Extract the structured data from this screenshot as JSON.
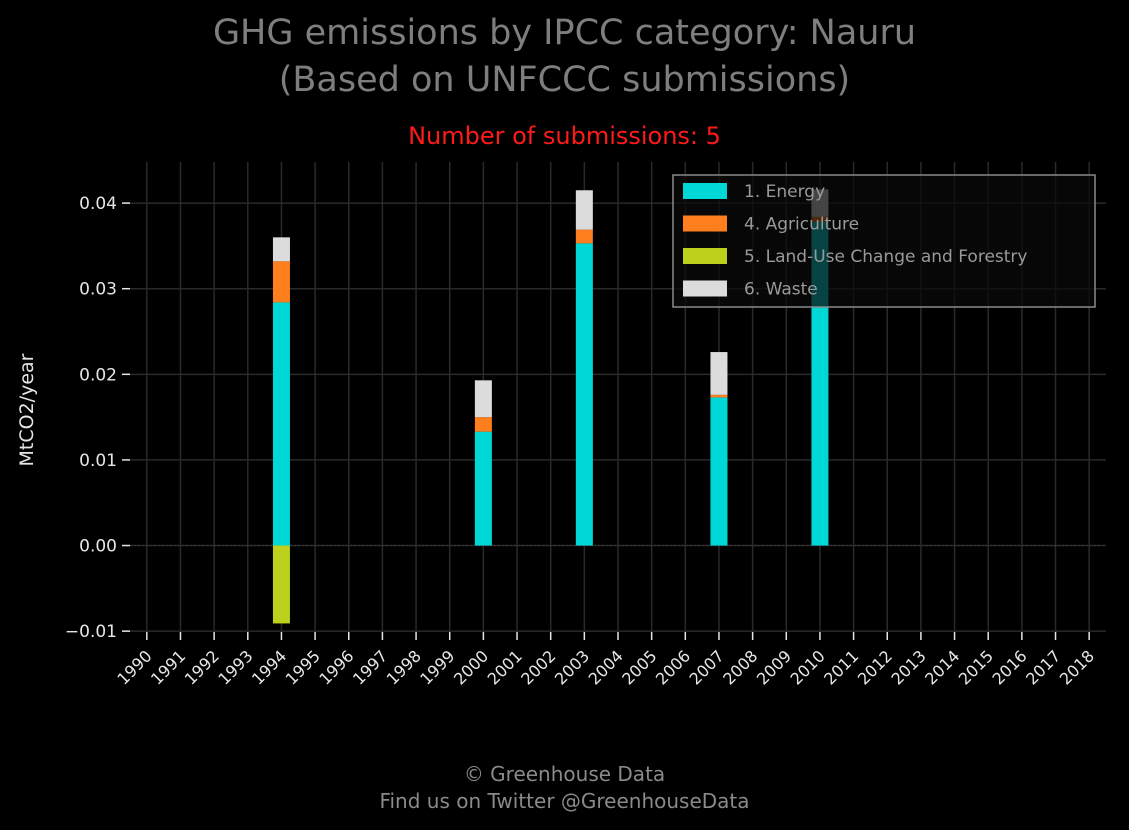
{
  "title_line1": "GHG emissions by IPCC category: Nauru",
  "title_line2": "(Based on UNFCCC submissions)",
  "subtitle": "Number of submissions: 5",
  "footer_line1": "© Greenhouse Data",
  "footer_line2": "Find us on Twitter @GreenhouseData",
  "chart_data": {
    "type": "bar",
    "stacked": true,
    "ylabel": "MtCO2/year",
    "xlabel": "",
    "ylim": [
      -0.0101,
      0.0448
    ],
    "yticks": [
      -0.01,
      0.0,
      0.01,
      0.02,
      0.03,
      0.04
    ],
    "ytick_labels": [
      "−0.01",
      "0.00",
      "0.01",
      "0.02",
      "0.03",
      "0.04"
    ],
    "categories": [
      "1990",
      "1991",
      "1992",
      "1993",
      "1994",
      "1995",
      "1996",
      "1997",
      "1998",
      "1999",
      "2000",
      "2001",
      "2002",
      "2003",
      "2004",
      "2005",
      "2006",
      "2007",
      "2008",
      "2009",
      "2010",
      "2011",
      "2012",
      "2013",
      "2014",
      "2015",
      "2016",
      "2017",
      "2018"
    ],
    "series": [
      {
        "name": "1. Energy",
        "color": "#00d8d8",
        "values": [
          null,
          null,
          null,
          null,
          0.0284,
          null,
          null,
          null,
          null,
          null,
          0.0133,
          null,
          null,
          0.0353,
          null,
          null,
          null,
          0.0173,
          null,
          null,
          0.0378,
          null,
          null,
          null,
          null,
          null,
          null,
          null,
          null
        ]
      },
      {
        "name": "4. Agriculture",
        "color": "#ff7f1e",
        "values": [
          null,
          null,
          null,
          null,
          0.0048,
          null,
          null,
          null,
          null,
          null,
          0.0017,
          null,
          null,
          0.0016,
          null,
          null,
          null,
          0.0003,
          null,
          null,
          0.0006,
          null,
          null,
          null,
          null,
          null,
          null,
          null,
          null
        ]
      },
      {
        "name": "5. Land-Use Change and Forestry",
        "color": "#bcd01c",
        "values": [
          null,
          null,
          null,
          null,
          -0.0091,
          null,
          null,
          null,
          null,
          null,
          null,
          null,
          null,
          null,
          null,
          null,
          null,
          null,
          null,
          null,
          null,
          null,
          null,
          null,
          null,
          null,
          null,
          null,
          null
        ]
      },
      {
        "name": "6. Waste",
        "color": "#dcdcdc",
        "values": [
          null,
          null,
          null,
          null,
          0.0028,
          null,
          null,
          null,
          null,
          null,
          0.0043,
          null,
          null,
          0.0046,
          null,
          null,
          null,
          0.005,
          null,
          null,
          0.0032,
          null,
          null,
          null,
          null,
          null,
          null,
          null,
          null
        ]
      }
    ],
    "grid": true,
    "legend_position": "top-right"
  }
}
